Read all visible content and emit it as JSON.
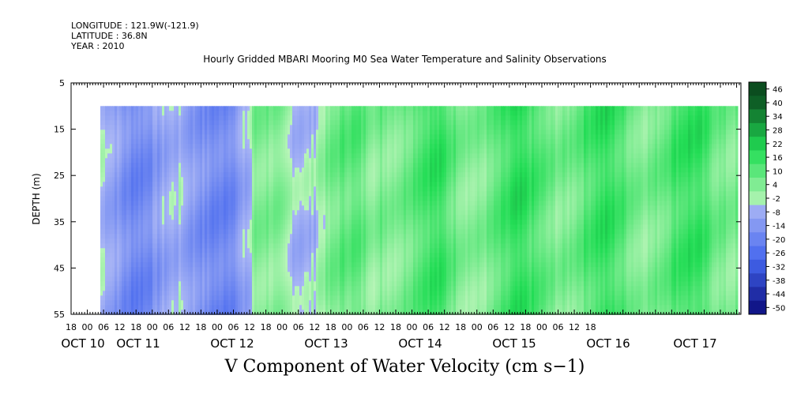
{
  "header": {
    "longitude": "LONGITUDE : 121.9W(-121.9)",
    "latitude": "LATITUDE : 36.8N",
    "year": "YEAR : 2010"
  },
  "chart_data": {
    "type": "heatmap",
    "title": "Hourly Gridded MBARI Mooring M0 Sea Water Temperature and Salinity Observations",
    "variable_title": "V Component of Water Velocity (cm s−1)",
    "ylabel": "DEPTH (m)",
    "ylim": [
      5,
      55
    ],
    "y_reversed": true,
    "y_ticks": [
      5,
      15,
      25,
      35,
      45,
      55
    ],
    "data_depth_range": [
      10,
      55
    ],
    "x_start_hour": "2010-10-10T18:00",
    "x_end_hour": "2010-10-17T20:00",
    "x_hour_ticks": [
      "18",
      "00",
      "06",
      "12",
      "18",
      "00",
      "06",
      "12",
      "18",
      "00",
      "06",
      "12",
      "18",
      "00",
      "06",
      "12",
      "18",
      "00",
      "06",
      "12",
      "18",
      "00",
      "06",
      "12",
      "18",
      "00",
      "06",
      "12",
      "18",
      "00",
      "06",
      "12",
      "18"
    ],
    "day_labels": [
      "OCT 10",
      "OCT 11",
      "OCT 12",
      "OCT 13",
      "OCT 14",
      "OCT 15",
      "OCT 16",
      "OCT 17"
    ],
    "colorbar": {
      "levels": [
        -50,
        -44,
        -38,
        -32,
        -26,
        -20,
        -14,
        -8,
        -2,
        4,
        10,
        16,
        22,
        28,
        34,
        40,
        46
      ],
      "labels": [
        "46",
        "40",
        "34",
        "28",
        "22",
        "16",
        "10",
        "4",
        "-2",
        "-8",
        "-14",
        "-20",
        "-26",
        "-32",
        "-38",
        "-44",
        "-50"
      ],
      "colors": {
        "dark_negative": "#0a0a7a",
        "mid_negative": "#4466ee",
        "light_negative": "#aab6f5",
        "light_positive": "#b8f5b8",
        "mid_positive": "#22dd55",
        "dark_positive": "#0b4d1f"
      }
    },
    "field_description": {
      "hourly_mean_v_profile": [
        {
          "day": "OCT 10",
          "v": -6
        },
        {
          "day": "OCT 11",
          "v": -8
        },
        {
          "day": "OCT 12",
          "v": -12
        },
        {
          "day": "OCT 13",
          "v": 2
        },
        {
          "day": "OCT 14",
          "v": 6
        },
        {
          "day": "OCT 15",
          "v": 14
        },
        {
          "day": "OCT 16",
          "v": 12
        },
        {
          "day": "OCT 17",
          "v": 14
        }
      ]
    }
  }
}
